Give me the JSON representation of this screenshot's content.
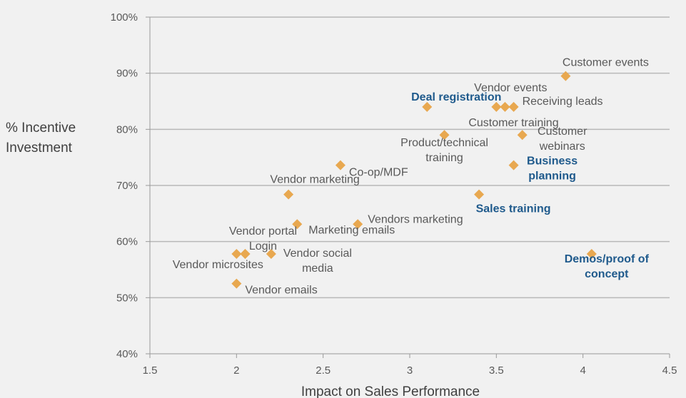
{
  "chart_data": {
    "type": "scatter",
    "title": "",
    "xlabel": "Impact on Sales Performance",
    "ylabel_lines": [
      "% Incentive",
      "Investment"
    ],
    "xlim": [
      1.5,
      4.5
    ],
    "ylim": [
      40,
      100
    ],
    "xticks": [
      "1.5",
      "2",
      "2.5",
      "3",
      "3.5",
      "4",
      "4.5"
    ],
    "yticks": [
      "40%",
      "50%",
      "60%",
      "70%",
      "80%",
      "90%",
      "100%"
    ],
    "grid": "horizontal",
    "marker_color": "#e8a850",
    "highlight_color": "#1f5a8c",
    "points": [
      {
        "label": "Customer events",
        "x": 3.9,
        "y": 89.5,
        "highlight": false
      },
      {
        "label": "Vendor events",
        "x": 3.5,
        "y": 84,
        "highlight": false
      },
      {
        "label": "Customer training",
        "x": 3.55,
        "y": 84,
        "highlight": false
      },
      {
        "label": "Receiving leads",
        "x": 3.6,
        "y": 84,
        "highlight": false
      },
      {
        "label": "Deal registration",
        "x": 3.1,
        "y": 84,
        "highlight": true
      },
      {
        "label": "Product/technical training",
        "x": 3.2,
        "y": 79,
        "highlight": false
      },
      {
        "label": "Customer webinars",
        "x": 3.65,
        "y": 79,
        "highlight": false
      },
      {
        "label": "Co-op/MDF",
        "x": 2.6,
        "y": 73.6,
        "highlight": false
      },
      {
        "label": "Business planning",
        "x": 3.6,
        "y": 73.6,
        "highlight": true
      },
      {
        "label": "Sales training",
        "x": 3.4,
        "y": 68.4,
        "highlight": true
      },
      {
        "label": "Vendor marketing",
        "x": 2.3,
        "y": 68.4,
        "highlight": false
      },
      {
        "label": "Marketing emails",
        "x": 2.35,
        "y": 63.1,
        "highlight": false
      },
      {
        "label": "Vendors marketing",
        "x": 2.7,
        "y": 63.1,
        "highlight": false
      },
      {
        "label": "Vendor portal",
        "x": 2.05,
        "y": 57.8,
        "highlight": false
      },
      {
        "label": "Login",
        "x": 2.05,
        "y": 57.8,
        "highlight": false
      },
      {
        "label": "Vendor microsites",
        "x": 2.0,
        "y": 57.8,
        "highlight": false
      },
      {
        "label": "Vendor social media",
        "x": 2.2,
        "y": 57.8,
        "highlight": false
      },
      {
        "label": "Vendor emails",
        "x": 2.0,
        "y": 52.5,
        "highlight": false
      },
      {
        "label": "Demos/proof of concept",
        "x": 4.05,
        "y": 57.8,
        "highlight": true
      }
    ]
  }
}
